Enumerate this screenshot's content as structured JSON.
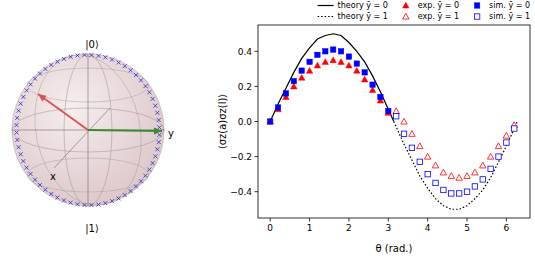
{
  "chart_data": {
    "type": "scatter",
    "xlabel": "θ (rad.)",
    "ylabel": "⟨σz(a)σz(l)⟩",
    "xlim": [
      -0.31,
      6.6
    ],
    "ylim": [
      -0.55,
      0.55
    ],
    "xticks": [
      0,
      1,
      2,
      3,
      4,
      5,
      6
    ],
    "yticks": [
      {
        "value": -0.4,
        "label": "−0.4"
      },
      {
        "value": -0.2,
        "label": "−0.2"
      },
      {
        "value": 0,
        "label": "0.0"
      },
      0.2,
      0.4
    ],
    "grid": false,
    "legend": "top",
    "series": [
      {
        "name": "theory ȳ = 0",
        "type": "line",
        "color": "#000000",
        "line_style": "solid",
        "x": [
          0,
          0.2,
          0.4,
          0.6,
          0.8,
          1.0,
          1.2,
          1.4,
          1.6,
          1.8,
          2.0,
          2.2,
          2.4,
          2.6,
          2.8,
          3.0,
          3.14
        ],
        "values": [
          0,
          0.1,
          0.19,
          0.28,
          0.36,
          0.42,
          0.47,
          0.49,
          0.5,
          0.49,
          0.45,
          0.4,
          0.34,
          0.26,
          0.17,
          0.07,
          0
        ]
      },
      {
        "name": "theory ȳ = 1",
        "type": "line",
        "color": "#000000",
        "line_style": "dotted",
        "x": [
          3.14,
          3.2,
          3.4,
          3.6,
          3.8,
          4.0,
          4.2,
          4.4,
          4.6,
          4.8,
          5.0,
          5.2,
          5.4,
          5.6,
          5.8,
          6.0,
          6.2,
          6.28
        ],
        "values": [
          0,
          -0.03,
          -0.13,
          -0.22,
          -0.31,
          -0.38,
          -0.44,
          -0.48,
          -0.5,
          -0.5,
          -0.48,
          -0.44,
          -0.39,
          -0.32,
          -0.23,
          -0.14,
          -0.04,
          0
        ]
      },
      {
        "name": "exp. ȳ = 0",
        "type": "scatter",
        "color": "#ff0000",
        "marker": "triangle",
        "x": [
          0,
          0.2,
          0.4,
          0.6,
          0.8,
          1.0,
          1.2,
          1.4,
          1.6,
          1.8,
          2.0,
          2.2,
          2.4,
          2.6,
          2.8,
          3.0
        ],
        "values": [
          0,
          0.07,
          0.14,
          0.2,
          0.25,
          0.29,
          0.32,
          0.34,
          0.35,
          0.34,
          0.32,
          0.29,
          0.24,
          0.18,
          0.12,
          0.05
        ]
      },
      {
        "name": "exp. ȳ = 1",
        "type": "scatter",
        "color": "#ff0000",
        "marker": "triangle-open",
        "x": [
          3.2,
          3.4,
          3.6,
          3.8,
          4.0,
          4.2,
          4.4,
          4.6,
          4.8,
          5.0,
          5.2,
          5.4,
          5.6,
          5.8,
          6.0,
          6.2
        ],
        "values": [
          0.06,
          0,
          -0.07,
          -0.14,
          -0.2,
          -0.25,
          -0.29,
          -0.31,
          -0.32,
          -0.31,
          -0.29,
          -0.25,
          -0.2,
          -0.14,
          -0.08,
          -0.02
        ]
      },
      {
        "name": "sim. ȳ = 0",
        "type": "scatter",
        "color": "#0000ff",
        "marker": "square",
        "x": [
          0,
          0.2,
          0.4,
          0.6,
          0.8,
          1.0,
          1.2,
          1.4,
          1.6,
          1.8,
          2.0,
          2.2,
          2.4,
          2.6,
          2.8,
          3.0
        ],
        "values": [
          0,
          0.08,
          0.16,
          0.23,
          0.29,
          0.34,
          0.38,
          0.4,
          0.41,
          0.4,
          0.37,
          0.33,
          0.28,
          0.21,
          0.14,
          0.06
        ]
      },
      {
        "name": "sim. ȳ = 1",
        "type": "scatter",
        "color": "#0000ff",
        "marker": "square-open",
        "x": [
          3.2,
          3.4,
          3.6,
          3.8,
          4.0,
          4.2,
          4.4,
          4.6,
          4.8,
          5.0,
          5.2,
          5.4,
          5.6,
          5.8,
          6.0,
          6.2
        ],
        "values": [
          0.03,
          -0.07,
          -0.15,
          -0.23,
          -0.3,
          -0.35,
          -0.39,
          -0.41,
          -0.41,
          -0.4,
          -0.37,
          -0.33,
          -0.27,
          -0.2,
          -0.12,
          -0.04
        ]
      }
    ]
  },
  "bloch_sphere": {
    "labels": {
      "zero": "|0⟩",
      "one": "|1⟩",
      "x": "x",
      "y": "y"
    }
  }
}
